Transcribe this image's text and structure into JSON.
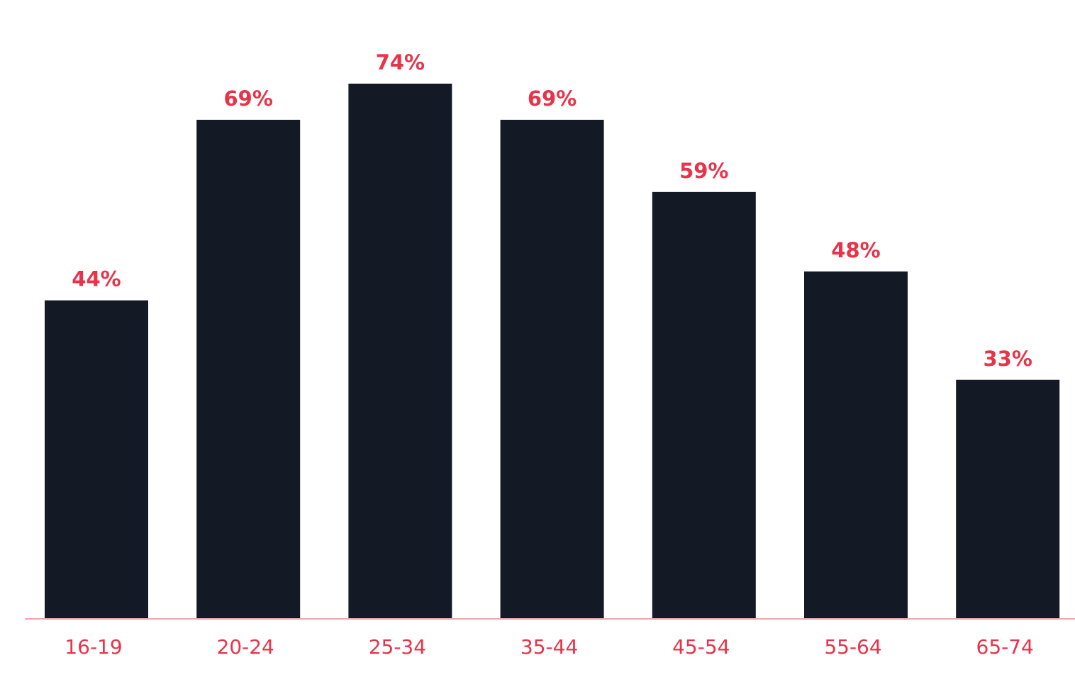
{
  "chart_data": {
    "type": "bar",
    "categories": [
      "16-19",
      "20-24",
      "25-34",
      "35-44",
      "45-54",
      "55-64",
      "65-74"
    ],
    "values": [
      44,
      69,
      74,
      69,
      59,
      48,
      33
    ],
    "value_labels": [
      "44%",
      "69%",
      "74%",
      "69%",
      "59%",
      "48%",
      "33%"
    ],
    "color": "#131a26"
  }
}
